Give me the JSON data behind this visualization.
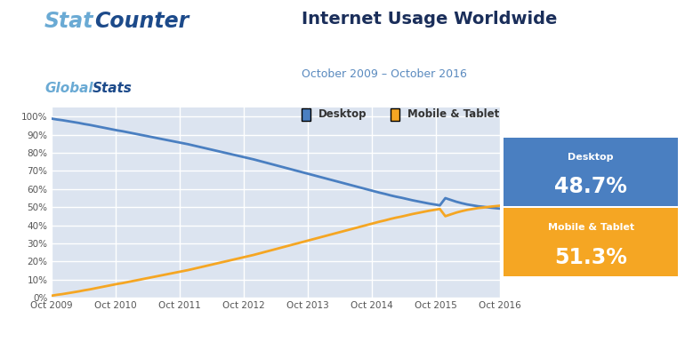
{
  "title": "Internet Usage Worldwide",
  "subtitle": "October 2009 – October 2016",
  "legend_desktop": "Desktop",
  "legend_mobile": "Mobile & Tablet",
  "desktop_color": "#4a7fc1",
  "mobile_color": "#f5a623",
  "desktop_end_label": "Desktop",
  "desktop_end_value": "48.7%",
  "mobile_end_label": "Mobile & Tablet",
  "mobile_end_value": "51.3%",
  "bg_color": "#ffffff",
  "plot_bg_color": "#dce4f0",
  "grid_color": "#ffffff",
  "title_color": "#1a2e5a",
  "subtitle_color": "#5a8abf",
  "ytick_labels": [
    "0%",
    "10%",
    "20%",
    "30%",
    "40%",
    "50%",
    "60%",
    "70%",
    "80%",
    "90%",
    "100%"
  ],
  "xtick_labels": [
    "Oct 2009",
    "Oct 2010",
    "Oct 2011",
    "Oct 2012",
    "Oct 2013",
    "Oct 2014",
    "Oct 2015",
    "Oct 2016"
  ],
  "desktop_data": [
    99.0,
    98.5,
    98.1,
    97.6,
    97.1,
    96.6,
    96.0,
    95.5,
    94.9,
    94.3,
    93.7,
    93.1,
    92.5,
    92.0,
    91.4,
    90.8,
    90.2,
    89.6,
    89.0,
    88.4,
    87.8,
    87.2,
    86.6,
    86.0,
    85.4,
    84.8,
    84.1,
    83.4,
    82.7,
    82.0,
    81.3,
    80.6,
    79.9,
    79.2,
    78.5,
    77.8,
    77.1,
    76.4,
    75.6,
    74.8,
    74.0,
    73.2,
    72.4,
    71.6,
    70.8,
    70.0,
    69.2,
    68.4,
    67.6,
    66.8,
    66.0,
    65.2,
    64.4,
    63.6,
    62.8,
    62.0,
    61.2,
    60.4,
    59.6,
    58.8,
    58.0,
    57.3,
    56.5,
    55.8,
    55.2,
    54.5,
    53.8,
    53.2,
    52.6,
    52.0,
    51.5,
    51.0,
    55.0,
    54.0,
    53.0,
    52.2,
    51.5,
    51.0,
    50.5,
    50.2,
    49.8,
    49.5,
    49.2,
    48.9,
    48.7
  ],
  "mobile_data": [
    1.0,
    1.5,
    1.9,
    2.4,
    2.9,
    3.4,
    4.0,
    4.5,
    5.1,
    5.7,
    6.3,
    6.9,
    7.5,
    8.0,
    8.6,
    9.2,
    9.8,
    10.4,
    11.0,
    11.6,
    12.2,
    12.8,
    13.4,
    14.0,
    14.6,
    15.2,
    15.9,
    16.6,
    17.3,
    18.0,
    18.7,
    19.4,
    20.1,
    20.8,
    21.5,
    22.2,
    22.9,
    23.6,
    24.4,
    25.2,
    26.0,
    26.8,
    27.6,
    28.4,
    29.2,
    30.0,
    30.8,
    31.6,
    32.4,
    33.2,
    34.0,
    34.8,
    35.6,
    36.4,
    37.2,
    38.0,
    38.8,
    39.6,
    40.4,
    41.2,
    42.0,
    42.7,
    43.5,
    44.2,
    44.8,
    45.5,
    46.2,
    46.8,
    47.4,
    48.0,
    48.5,
    49.0,
    45.0,
    46.0,
    47.0,
    47.8,
    48.5,
    49.0,
    49.5,
    49.8,
    50.2,
    50.5,
    50.8,
    51.1,
    51.3
  ]
}
